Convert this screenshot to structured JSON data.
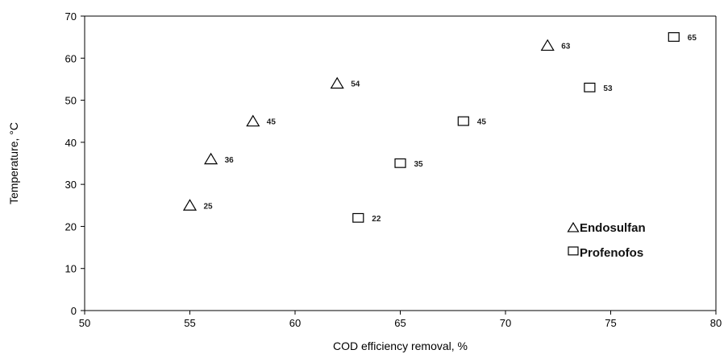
{
  "chart_data": {
    "type": "scatter",
    "title": "",
    "xlabel": "COD efficiency removal, %",
    "ylabel": "Temperature, °C",
    "xlim": [
      50,
      80
    ],
    "ylim": [
      0,
      70
    ],
    "xticks": [
      50,
      55,
      60,
      65,
      70,
      75,
      80
    ],
    "yticks": [
      0,
      10,
      20,
      30,
      40,
      50,
      60,
      70
    ],
    "grid": false,
    "legend_position": "bottom-right",
    "series": [
      {
        "name": "Endosulfan",
        "marker": "triangle",
        "points": [
          {
            "x": 55,
            "y": 25,
            "label": "25"
          },
          {
            "x": 56,
            "y": 36,
            "label": "36"
          },
          {
            "x": 58,
            "y": 45,
            "label": "45"
          },
          {
            "x": 62,
            "y": 54,
            "label": "54"
          },
          {
            "x": 72,
            "y": 63,
            "label": "63"
          }
        ]
      },
      {
        "name": "Profenofos",
        "marker": "square",
        "points": [
          {
            "x": 63,
            "y": 22,
            "label": "22"
          },
          {
            "x": 65,
            "y": 35,
            "label": "35"
          },
          {
            "x": 68,
            "y": 45,
            "label": "45"
          },
          {
            "x": 74,
            "y": 53,
            "label": "53"
          },
          {
            "x": 78,
            "y": 65,
            "label": "65"
          }
        ]
      }
    ]
  }
}
